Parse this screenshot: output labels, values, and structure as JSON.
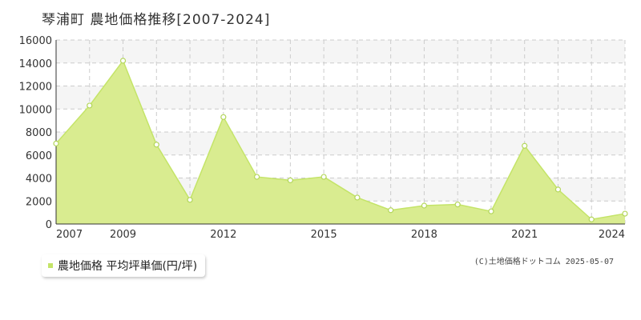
{
  "header": {
    "title": "琴浦町 農地価格推移[2007-2024]"
  },
  "legend": {
    "label": "農地価格 平均坪単価(円/坪)"
  },
  "footer": {
    "copyright": "(C)土地価格ドットコム 2025-05-07"
  },
  "colors": {
    "fill": "#d9ec90",
    "line": "#c4e468",
    "marker_stroke": "#b3d65a",
    "grid": "#cccccc",
    "band": "#f5f5f5",
    "axis": "#333333"
  },
  "chart_data": {
    "type": "area",
    "title": "琴浦町 農地価格推移[2007-2024]",
    "xlabel": "",
    "ylabel": "",
    "x": [
      2007,
      2008,
      2009,
      2010,
      2011,
      2012,
      2013,
      2014,
      2015,
      2016,
      2017,
      2018,
      2019,
      2020,
      2021,
      2022,
      2023,
      2024
    ],
    "x_tick_labels": [
      "2007",
      "2009",
      "2012",
      "2015",
      "2018",
      "2021",
      "2024"
    ],
    "y_ticks": [
      0,
      2000,
      4000,
      6000,
      8000,
      10000,
      12000,
      14000,
      16000
    ],
    "xlim": [
      2007,
      2024
    ],
    "ylim": [
      0,
      16000
    ],
    "grid": true,
    "legend_position": "bottom-left",
    "series": [
      {
        "name": "農地価格 平均坪単価(円/坪)",
        "values": [
          7000,
          10300,
          14200,
          6900,
          2100,
          9300,
          4100,
          3800,
          4100,
          2300,
          1200,
          1600,
          1700,
          1100,
          6800,
          3000,
          400,
          900
        ]
      }
    ]
  }
}
